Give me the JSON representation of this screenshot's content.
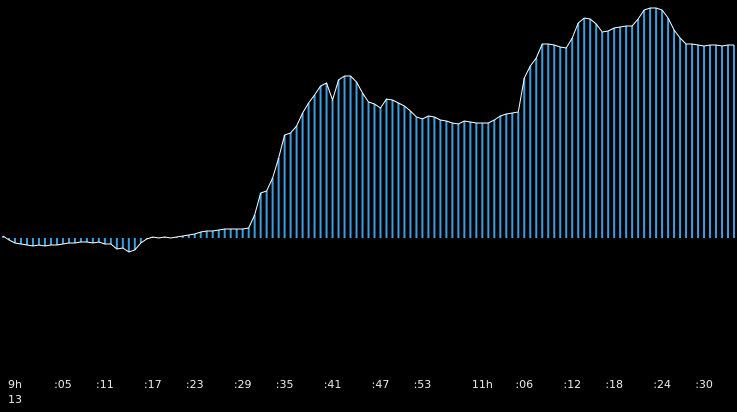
{
  "chart_data": {
    "type": "bar",
    "categories": [
      null,
      null,
      "9h",
      null,
      null,
      null,
      null,
      null,
      null,
      null,
      ":05",
      null,
      null,
      null,
      null,
      null,
      null,
      ":11",
      null,
      null,
      null,
      null,
      null,
      null,
      null,
      ":17",
      null,
      null,
      null,
      null,
      null,
      null,
      ":23",
      null,
      null,
      null,
      null,
      null,
      null,
      null,
      ":29",
      null,
      null,
      null,
      null,
      null,
      null,
      ":35",
      null,
      null,
      null,
      null,
      null,
      null,
      null,
      ":41",
      null,
      null,
      null,
      null,
      null,
      null,
      null,
      ":47",
      null,
      null,
      null,
      null,
      null,
      null,
      ":53",
      null,
      null,
      null,
      null,
      null,
      null,
      null,
      null,
      null,
      "11h",
      null,
      null,
      null,
      null,
      null,
      null,
      ":06",
      null,
      null,
      null,
      null,
      null,
      null,
      null,
      ":12",
      null,
      null,
      null,
      null,
      null,
      null,
      ":18",
      null,
      null,
      null,
      null,
      null,
      null,
      null,
      ":24",
      null,
      null,
      null,
      null,
      null,
      null,
      ":30",
      null,
      null,
      null,
      null,
      null
    ],
    "x_sublabel": "13",
    "values": [
      2,
      -2,
      -5,
      -6,
      -7,
      -8,
      -7,
      -8,
      -7,
      -7,
      -6,
      -5,
      -5,
      -4,
      -4,
      -5,
      -4,
      -6,
      -6,
      -11,
      -10,
      -14,
      -12,
      -5,
      -1,
      1,
      0,
      1,
      0,
      1,
      2,
      3,
      4,
      6,
      7,
      7,
      8,
      9,
      9,
      9,
      9,
      10,
      23,
      45,
      47,
      60,
      80,
      103,
      105,
      112,
      125,
      135,
      143,
      152,
      155,
      138,
      158,
      162,
      162,
      156,
      145,
      136,
      134,
      130,
      139,
      138,
      135,
      132,
      127,
      121,
      119,
      122,
      121,
      118,
      117,
      115,
      114,
      117,
      116,
      115,
      115,
      115,
      118,
      122,
      124,
      125,
      126,
      160,
      172,
      180,
      194,
      194,
      193,
      191,
      190,
      200,
      215,
      220,
      219,
      214,
      206,
      207,
      210,
      211,
      212,
      212,
      219,
      228,
      230,
      230,
      228,
      220,
      208,
      200,
      194,
      194,
      193,
      192,
      193,
      193,
      192,
      193,
      193
    ],
    "color": "#3a9fe0",
    "line_color": "#ffffff",
    "ylim": [
      -132,
      238
    ]
  }
}
